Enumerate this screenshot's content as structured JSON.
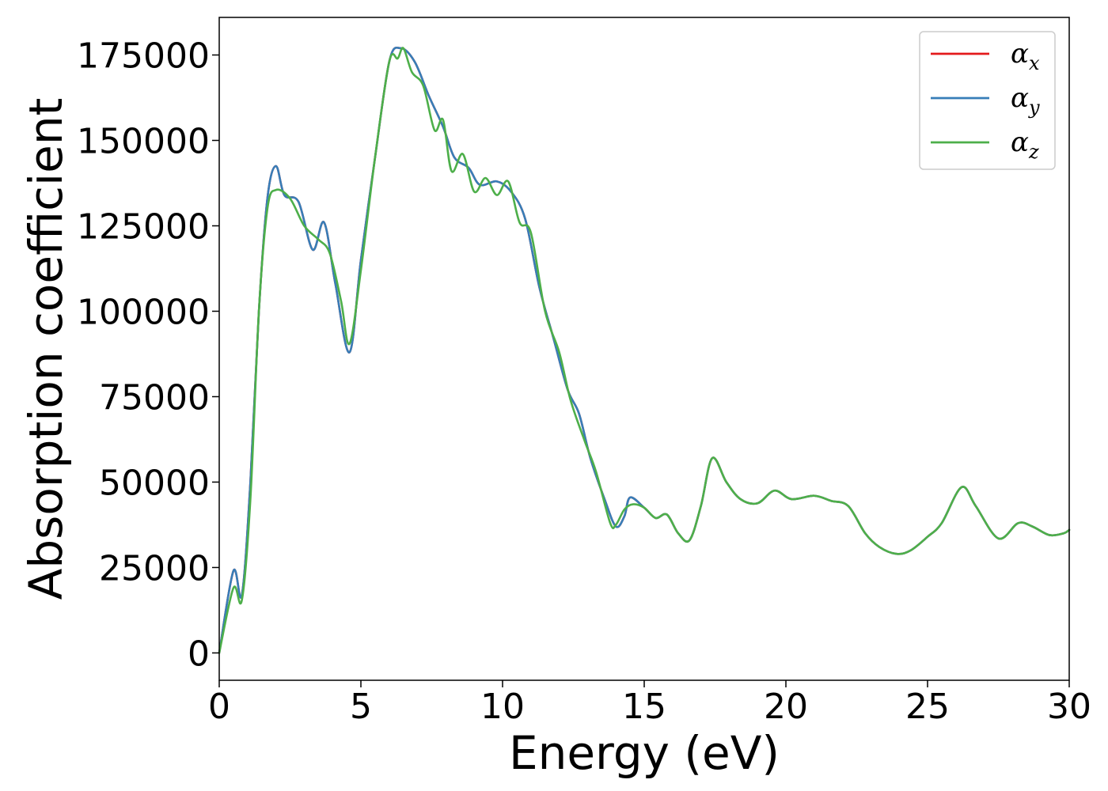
{
  "chart_data": {
    "type": "line",
    "title": "",
    "xlabel": "Energy (eV)",
    "ylabel": "Absorption coefficient",
    "xlim": [
      0,
      30
    ],
    "ylim": [
      -8000,
      186000
    ],
    "x_ticks": [
      0,
      5,
      10,
      15,
      20,
      25,
      30
    ],
    "x_tick_labels": [
      "0",
      "5",
      "10",
      "15",
      "20",
      "25",
      "30"
    ],
    "y_ticks": [
      0,
      25000,
      50000,
      75000,
      100000,
      125000,
      150000,
      175000
    ],
    "y_tick_labels": [
      "0",
      "25000",
      "50000",
      "75000",
      "100000",
      "125000",
      "150000",
      "175000"
    ],
    "grid": false,
    "legend_position": "top-right",
    "series": [
      {
        "name": "αx",
        "legend_base": "α",
        "legend_sub": "x",
        "color": "#e41a1c",
        "points": [
          [
            0,
            0
          ],
          [
            0.5,
            24000
          ],
          [
            0.8,
            17000
          ],
          [
            1.1,
            50000
          ],
          [
            1.4,
            100000
          ],
          [
            1.7,
            133000
          ],
          [
            2.0,
            142500
          ],
          [
            2.3,
            134000
          ],
          [
            2.8,
            132000
          ],
          [
            3.3,
            118000
          ],
          [
            3.7,
            126000
          ],
          [
            4.1,
            108000
          ],
          [
            4.6,
            88000
          ],
          [
            5.0,
            115000
          ],
          [
            5.5,
            145000
          ],
          [
            6.0,
            173000
          ],
          [
            6.4,
            177000
          ],
          [
            6.9,
            173000
          ],
          [
            7.4,
            163000
          ],
          [
            7.9,
            154000
          ],
          [
            8.3,
            145000
          ],
          [
            8.8,
            142000
          ],
          [
            9.2,
            137000
          ],
          [
            9.8,
            138000
          ],
          [
            10.3,
            135000
          ],
          [
            10.8,
            127000
          ],
          [
            11.3,
            107000
          ],
          [
            11.8,
            92000
          ],
          [
            12.3,
            77000
          ],
          [
            12.7,
            70000
          ],
          [
            13.1,
            57000
          ],
          [
            13.6,
            45000
          ],
          [
            14.0,
            37000
          ],
          [
            14.3,
            40000
          ],
          [
            14.5,
            45500
          ],
          [
            15.0,
            42500
          ],
          [
            15.4,
            39500
          ],
          [
            15.8,
            40500
          ],
          [
            16.2,
            35000
          ],
          [
            16.6,
            33000
          ],
          [
            17.0,
            43000
          ],
          [
            17.4,
            57000
          ],
          [
            17.9,
            50000
          ],
          [
            18.4,
            45000
          ],
          [
            19.0,
            43800
          ],
          [
            19.6,
            47500
          ],
          [
            20.2,
            45000
          ],
          [
            21.0,
            46000
          ],
          [
            21.6,
            44500
          ],
          [
            22.2,
            43000
          ],
          [
            22.8,
            35000
          ],
          [
            23.3,
            31000
          ],
          [
            23.9,
            29000
          ],
          [
            24.4,
            30000
          ],
          [
            25.0,
            34000
          ],
          [
            25.5,
            38000
          ],
          [
            26.2,
            48500
          ],
          [
            26.7,
            43000
          ],
          [
            27.5,
            33500
          ],
          [
            28.2,
            38000
          ],
          [
            28.7,
            37000
          ],
          [
            29.3,
            34500
          ],
          [
            29.8,
            35000
          ],
          [
            30.0,
            36000
          ]
        ]
      },
      {
        "name": "αy",
        "legend_base": "α",
        "legend_sub": "y",
        "color": "#377eb8",
        "points": [
          [
            0,
            0
          ],
          [
            0.5,
            24000
          ],
          [
            0.8,
            17000
          ],
          [
            1.1,
            50000
          ],
          [
            1.4,
            100000
          ],
          [
            1.7,
            133000
          ],
          [
            2.0,
            142500
          ],
          [
            2.3,
            134000
          ],
          [
            2.8,
            132000
          ],
          [
            3.3,
            118000
          ],
          [
            3.7,
            126000
          ],
          [
            4.1,
            108000
          ],
          [
            4.6,
            88000
          ],
          [
            5.0,
            115000
          ],
          [
            5.5,
            145000
          ],
          [
            6.0,
            173000
          ],
          [
            6.4,
            177000
          ],
          [
            6.9,
            173000
          ],
          [
            7.4,
            163000
          ],
          [
            7.9,
            154000
          ],
          [
            8.3,
            145000
          ],
          [
            8.8,
            142000
          ],
          [
            9.2,
            137000
          ],
          [
            9.8,
            138000
          ],
          [
            10.3,
            135000
          ],
          [
            10.8,
            127000
          ],
          [
            11.3,
            107000
          ],
          [
            11.8,
            92000
          ],
          [
            12.3,
            77000
          ],
          [
            12.7,
            70000
          ],
          [
            13.1,
            57000
          ],
          [
            13.6,
            45000
          ],
          [
            14.0,
            37000
          ],
          [
            14.3,
            40000
          ],
          [
            14.5,
            45500
          ],
          [
            15.0,
            42500
          ],
          [
            15.4,
            39500
          ],
          [
            15.8,
            40500
          ],
          [
            16.2,
            35000
          ],
          [
            16.6,
            33000
          ],
          [
            17.0,
            43000
          ],
          [
            17.4,
            57000
          ],
          [
            17.9,
            50000
          ],
          [
            18.4,
            45000
          ],
          [
            19.0,
            43800
          ],
          [
            19.6,
            47500
          ],
          [
            20.2,
            45000
          ],
          [
            21.0,
            46000
          ],
          [
            21.6,
            44500
          ],
          [
            22.2,
            43000
          ],
          [
            22.8,
            35000
          ],
          [
            23.3,
            31000
          ],
          [
            23.9,
            29000
          ],
          [
            24.4,
            30000
          ],
          [
            25.0,
            34000
          ],
          [
            25.5,
            38000
          ],
          [
            26.2,
            48500
          ],
          [
            26.7,
            43000
          ],
          [
            27.5,
            33500
          ],
          [
            28.2,
            38000
          ],
          [
            28.7,
            37000
          ],
          [
            29.3,
            34500
          ],
          [
            29.8,
            35000
          ],
          [
            30.0,
            36000
          ]
        ]
      },
      {
        "name": "αz",
        "legend_base": "α",
        "legend_sub": "z",
        "color": "#4daf4a",
        "points": [
          [
            0,
            0
          ],
          [
            0.5,
            19000
          ],
          [
            0.8,
            15500
          ],
          [
            1.1,
            45000
          ],
          [
            1.4,
            100000
          ],
          [
            1.7,
            130000
          ],
          [
            2.0,
            135500
          ],
          [
            2.5,
            133000
          ],
          [
            3.0,
            125000
          ],
          [
            3.5,
            121000
          ],
          [
            3.9,
            117000
          ],
          [
            4.3,
            103000
          ],
          [
            4.6,
            90500
          ],
          [
            5.0,
            112000
          ],
          [
            5.5,
            145000
          ],
          [
            6.0,
            173000
          ],
          [
            6.3,
            174000
          ],
          [
            6.5,
            177000
          ],
          [
            6.8,
            170000
          ],
          [
            7.2,
            166000
          ],
          [
            7.6,
            153000
          ],
          [
            7.9,
            156000
          ],
          [
            8.2,
            141000
          ],
          [
            8.6,
            146000
          ],
          [
            9.0,
            135000
          ],
          [
            9.4,
            139000
          ],
          [
            9.8,
            134000
          ],
          [
            10.2,
            138000
          ],
          [
            10.6,
            126000
          ],
          [
            11.0,
            123000
          ],
          [
            11.5,
            100000
          ],
          [
            12.0,
            88000
          ],
          [
            12.4,
            74000
          ],
          [
            12.9,
            62000
          ],
          [
            13.3,
            53000
          ],
          [
            13.8,
            38000
          ],
          [
            14.0,
            37500
          ],
          [
            14.3,
            42000
          ],
          [
            14.6,
            43500
          ],
          [
            15.0,
            42500
          ],
          [
            15.4,
            39500
          ],
          [
            15.8,
            40500
          ],
          [
            16.2,
            35000
          ],
          [
            16.6,
            33000
          ],
          [
            17.0,
            43000
          ],
          [
            17.4,
            57000
          ],
          [
            17.9,
            50000
          ],
          [
            18.4,
            45000
          ],
          [
            19.0,
            43800
          ],
          [
            19.6,
            47500
          ],
          [
            20.2,
            45000
          ],
          [
            21.0,
            46000
          ],
          [
            21.6,
            44500
          ],
          [
            22.2,
            43000
          ],
          [
            22.8,
            35000
          ],
          [
            23.3,
            31000
          ],
          [
            23.9,
            29000
          ],
          [
            24.4,
            30000
          ],
          [
            25.0,
            34000
          ],
          [
            25.5,
            38000
          ],
          [
            26.2,
            48500
          ],
          [
            26.7,
            43000
          ],
          [
            27.5,
            33500
          ],
          [
            28.2,
            38000
          ],
          [
            28.7,
            37000
          ],
          [
            29.3,
            34500
          ],
          [
            29.8,
            35000
          ],
          [
            30.0,
            36000
          ]
        ]
      }
    ]
  }
}
